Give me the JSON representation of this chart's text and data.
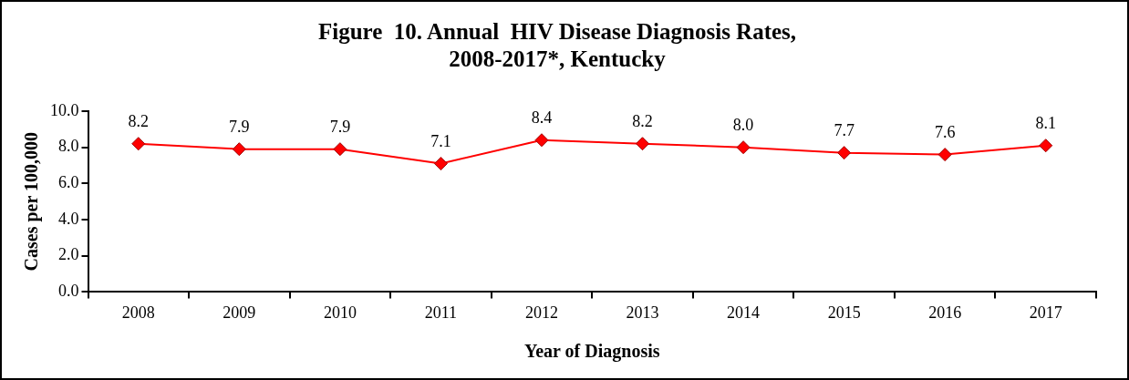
{
  "chart_data": {
    "type": "line",
    "title": "Figure  10. Annual  HIV Disease Diagnosis Rates,\n2008-2017*, Kentucky",
    "xlabel": "Year of Diagnosis",
    "ylabel": "Cases per 100,000",
    "categories": [
      "2008",
      "2009",
      "2010",
      "2011",
      "2012",
      "2013",
      "2014",
      "2015",
      "2016",
      "2017"
    ],
    "series": [
      {
        "color": "#ff0000",
        "values": [
          8.2,
          7.9,
          7.9,
          7.1,
          8.4,
          8.2,
          8.0,
          7.7,
          7.6,
          8.1
        ],
        "value_labels": [
          "8.2",
          "7.9",
          "7.9",
          "7.1",
          "8.4",
          "8.2",
          "8.0",
          "7.7",
          "7.6",
          "8.1"
        ]
      }
    ],
    "ylim": [
      0,
      10
    ],
    "yticks": [
      {
        "value": 0,
        "label": "0.0"
      },
      {
        "value": 2,
        "label": "2.0"
      },
      {
        "value": 4,
        "label": "4.0"
      },
      {
        "value": 6,
        "label": "6.0"
      },
      {
        "value": 8,
        "label": "8.0"
      },
      {
        "value": 10,
        "label": "10.0"
      }
    ],
    "grid": false,
    "legend": false,
    "marker": "diamond",
    "line_style": "solid"
  }
}
